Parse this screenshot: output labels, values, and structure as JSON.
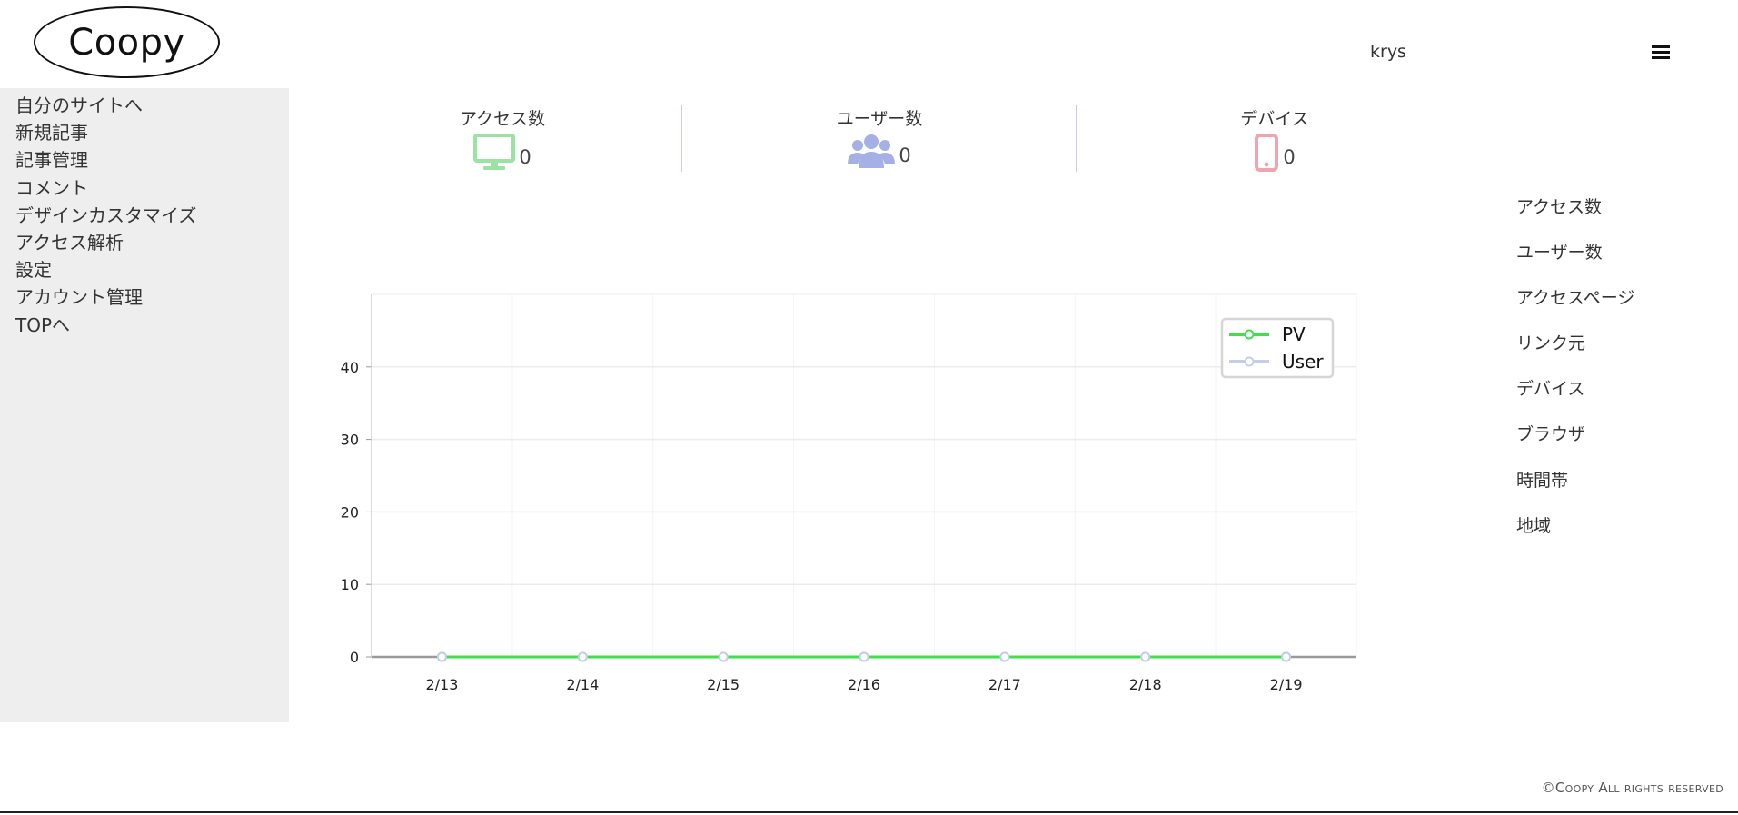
{
  "header": {
    "logo": "Coopy",
    "username": "krys"
  },
  "sidebar": {
    "items": [
      {
        "label": "自分のサイトへ"
      },
      {
        "label": "新規記事"
      },
      {
        "label": "記事管理"
      },
      {
        "label": "コメント"
      },
      {
        "label": "デザインカスタマイズ"
      },
      {
        "label": "アクセス解析"
      },
      {
        "label": "設定"
      },
      {
        "label": "アカウント管理"
      },
      {
        "label": "TOPへ"
      }
    ]
  },
  "stats": [
    {
      "label": "アクセス数",
      "value": "0",
      "icon": "monitor-icon",
      "color": "#9be3a3"
    },
    {
      "label": "ユーザー数",
      "value": "0",
      "icon": "users-icon",
      "color": "#a5b0e6"
    },
    {
      "label": "デバイス",
      "value": "0",
      "icon": "smartphone-icon",
      "color": "#f0a3b0"
    }
  ],
  "right_menu": {
    "items": [
      {
        "label": "アクセス数"
      },
      {
        "label": "ユーザー数"
      },
      {
        "label": "アクセスページ"
      },
      {
        "label": "リンク元"
      },
      {
        "label": "デバイス"
      },
      {
        "label": "ブラウザ"
      },
      {
        "label": "時間帯"
      },
      {
        "label": "地域"
      }
    ]
  },
  "chart_data": {
    "type": "line",
    "categories": [
      "2/13",
      "2/14",
      "2/15",
      "2/16",
      "2/17",
      "2/18",
      "2/19"
    ],
    "series": [
      {
        "name": "PV",
        "values": [
          0,
          0,
          0,
          0,
          0,
          0,
          0
        ],
        "color": "#3fe04a"
      },
      {
        "name": "User",
        "values": [
          0,
          0,
          0,
          0,
          0,
          0,
          0
        ],
        "color": "#c6cdea"
      }
    ],
    "yticks": [
      0,
      10,
      20,
      30,
      40
    ],
    "ylim": [
      0,
      50
    ],
    "legend": "top-right",
    "grid": true
  },
  "footer": {
    "text": "©Coopy All rights reserved"
  }
}
